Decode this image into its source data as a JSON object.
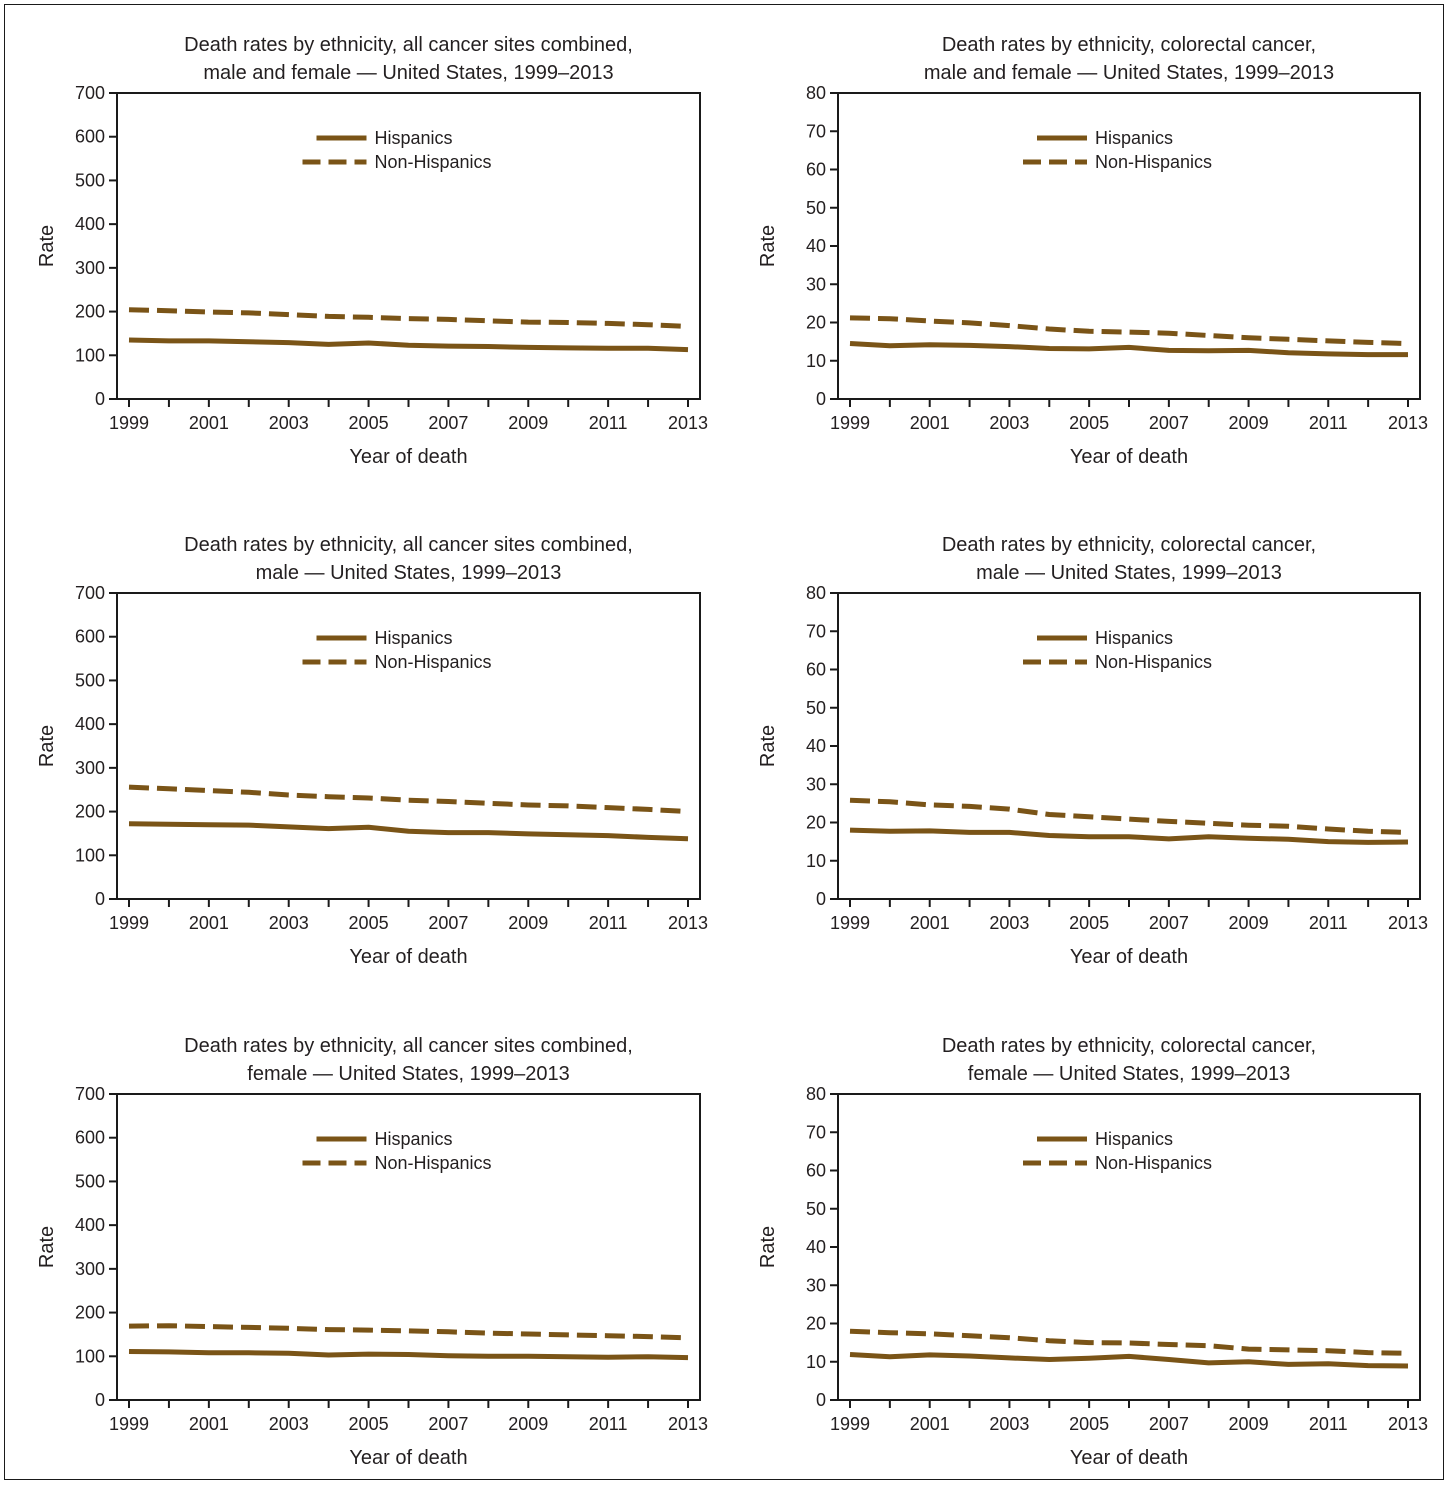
{
  "style": {
    "line_color": "#7a5417",
    "axis_color": "#1a1a1a",
    "text_color": "#231f20"
  },
  "chart_data": [
    {
      "type": "line",
      "title": [
        "Death rates by ethnicity, all cancer sites combined,",
        "male and female — United States, 1999–2013"
      ],
      "xlabel": "Year of death",
      "ylabel": "Rate",
      "ylim": [
        0,
        700
      ],
      "yticks": [
        0,
        100,
        200,
        300,
        400,
        500,
        600,
        700
      ],
      "xlim": [
        1999,
        2013
      ],
      "xtick_labels": [
        1999,
        2001,
        2003,
        2005,
        2007,
        2009,
        2011,
        2013
      ],
      "legend_position": "top-center",
      "x": [
        1999,
        2000,
        2001,
        2002,
        2003,
        2004,
        2005,
        2006,
        2007,
        2008,
        2009,
        2010,
        2011,
        2012,
        2013
      ],
      "series": [
        {
          "name": "Hispanics",
          "style": "solid",
          "values": [
            135,
            133,
            133,
            131,
            129,
            125,
            128,
            123,
            121,
            120,
            118,
            117,
            116,
            116,
            113
          ]
        },
        {
          "name": "Non-Hispanics",
          "style": "dashed",
          "values": [
            204,
            202,
            199,
            197,
            193,
            189,
            187,
            184,
            182,
            179,
            176,
            175,
            173,
            170,
            166
          ]
        }
      ]
    },
    {
      "type": "line",
      "title": [
        "Death rates by ethnicity, colorectal cancer,",
        "male and female — United States, 1999–2013"
      ],
      "xlabel": "Year of death",
      "ylabel": "Rate",
      "ylim": [
        0,
        80
      ],
      "yticks": [
        0,
        10,
        20,
        30,
        40,
        50,
        60,
        70,
        80
      ],
      "xlim": [
        1999,
        2013
      ],
      "xtick_labels": [
        1999,
        2001,
        2003,
        2005,
        2007,
        2009,
        2011,
        2013
      ],
      "legend_position": "top-center",
      "x": [
        1999,
        2000,
        2001,
        2002,
        2003,
        2004,
        2005,
        2006,
        2007,
        2008,
        2009,
        2010,
        2011,
        2012,
        2013
      ],
      "series": [
        {
          "name": "Hispanics",
          "style": "solid",
          "values": [
            14.5,
            13.9,
            14.2,
            14.0,
            13.7,
            13.2,
            13.1,
            13.5,
            12.7,
            12.6,
            12.7,
            12.1,
            11.8,
            11.6,
            11.6
          ]
        },
        {
          "name": "Non-Hispanics",
          "style": "dashed",
          "values": [
            21.2,
            21.0,
            20.4,
            19.9,
            19.2,
            18.3,
            17.7,
            17.5,
            17.2,
            16.6,
            16.0,
            15.6,
            15.2,
            14.8,
            14.5
          ]
        }
      ]
    },
    {
      "type": "line",
      "title": [
        "Death rates by ethnicity, all cancer sites combined,",
        "male — United States, 1999–2013"
      ],
      "xlabel": "Year of death",
      "ylabel": "Rate",
      "ylim": [
        0,
        700
      ],
      "yticks": [
        0,
        100,
        200,
        300,
        400,
        500,
        600,
        700
      ],
      "xlim": [
        1999,
        2013
      ],
      "xtick_labels": [
        1999,
        2001,
        2003,
        2005,
        2007,
        2009,
        2011,
        2013
      ],
      "legend_position": "top-center",
      "x": [
        1999,
        2000,
        2001,
        2002,
        2003,
        2004,
        2005,
        2006,
        2007,
        2008,
        2009,
        2010,
        2011,
        2012,
        2013
      ],
      "series": [
        {
          "name": "Hispanics",
          "style": "solid",
          "values": [
            172,
            171,
            170,
            169,
            165,
            161,
            164,
            155,
            152,
            152,
            149,
            147,
            145,
            141,
            138
          ]
        },
        {
          "name": "Non-Hispanics",
          "style": "dashed",
          "values": [
            256,
            252,
            248,
            244,
            238,
            234,
            231,
            226,
            223,
            219,
            215,
            213,
            209,
            205,
            200
          ]
        }
      ]
    },
    {
      "type": "line",
      "title": [
        "Death rates by ethnicity, colorectal cancer,",
        "male — United States, 1999–2013"
      ],
      "xlabel": "Year of death",
      "ylabel": "Rate",
      "ylim": [
        0,
        80
      ],
      "yticks": [
        0,
        10,
        20,
        30,
        40,
        50,
        60,
        70,
        80
      ],
      "xlim": [
        1999,
        2013
      ],
      "xtick_labels": [
        1999,
        2001,
        2003,
        2005,
        2007,
        2009,
        2011,
        2013
      ],
      "legend_position": "top-center",
      "x": [
        1999,
        2000,
        2001,
        2002,
        2003,
        2004,
        2005,
        2006,
        2007,
        2008,
        2009,
        2010,
        2011,
        2012,
        2013
      ],
      "series": [
        {
          "name": "Hispanics",
          "style": "solid",
          "values": [
            18.0,
            17.7,
            17.8,
            17.4,
            17.4,
            16.6,
            16.3,
            16.3,
            15.7,
            16.3,
            15.9,
            15.6,
            15.0,
            14.8,
            14.9
          ]
        },
        {
          "name": "Non-Hispanics",
          "style": "dashed",
          "values": [
            25.8,
            25.4,
            24.6,
            24.2,
            23.5,
            22.1,
            21.5,
            20.9,
            20.3,
            19.8,
            19.3,
            19.0,
            18.3,
            17.7,
            17.4
          ]
        }
      ]
    },
    {
      "type": "line",
      "title": [
        "Death rates by ethnicity, all cancer sites combined,",
        "female — United States, 1999–2013"
      ],
      "xlabel": "Year of death",
      "ylabel": "Rate",
      "ylim": [
        0,
        700
      ],
      "yticks": [
        0,
        100,
        200,
        300,
        400,
        500,
        600,
        700
      ],
      "xlim": [
        1999,
        2013
      ],
      "xtick_labels": [
        1999,
        2001,
        2003,
        2005,
        2007,
        2009,
        2011,
        2013
      ],
      "legend_position": "top-center",
      "x": [
        1999,
        2000,
        2001,
        2002,
        2003,
        2004,
        2005,
        2006,
        2007,
        2008,
        2009,
        2010,
        2011,
        2012,
        2013
      ],
      "series": [
        {
          "name": "Hispanics",
          "style": "solid",
          "values": [
            111,
            110,
            108,
            108,
            107,
            103,
            105,
            104,
            101,
            100,
            100,
            99,
            98,
            99,
            97
          ]
        },
        {
          "name": "Non-Hispanics",
          "style": "dashed",
          "values": [
            169,
            170,
            168,
            166,
            164,
            161,
            160,
            158,
            156,
            153,
            151,
            149,
            147,
            145,
            142
          ]
        }
      ]
    },
    {
      "type": "line",
      "title": [
        "Death rates by ethnicity, colorectal cancer,",
        "female — United States, 1999–2013"
      ],
      "xlabel": "Year of death",
      "ylabel": "Rate",
      "ylim": [
        0,
        80
      ],
      "yticks": [
        0,
        10,
        20,
        30,
        40,
        50,
        60,
        70,
        80
      ],
      "xlim": [
        1999,
        2013
      ],
      "xtick_labels": [
        1999,
        2001,
        2003,
        2005,
        2007,
        2009,
        2011,
        2013
      ],
      "legend_position": "top-center",
      "x": [
        1999,
        2000,
        2001,
        2002,
        2003,
        2004,
        2005,
        2006,
        2007,
        2008,
        2009,
        2010,
        2011,
        2012,
        2013
      ],
      "series": [
        {
          "name": "Hispanics",
          "style": "solid",
          "values": [
            11.9,
            11.3,
            11.8,
            11.5,
            11.0,
            10.6,
            10.9,
            11.4,
            10.6,
            9.7,
            10.0,
            9.3,
            9.5,
            9.0,
            8.9
          ]
        },
        {
          "name": "Non-Hispanics",
          "style": "dashed",
          "values": [
            18.0,
            17.6,
            17.3,
            16.8,
            16.3,
            15.5,
            15.0,
            14.9,
            14.5,
            14.2,
            13.3,
            13.1,
            12.9,
            12.4,
            12.2
          ]
        }
      ]
    }
  ]
}
